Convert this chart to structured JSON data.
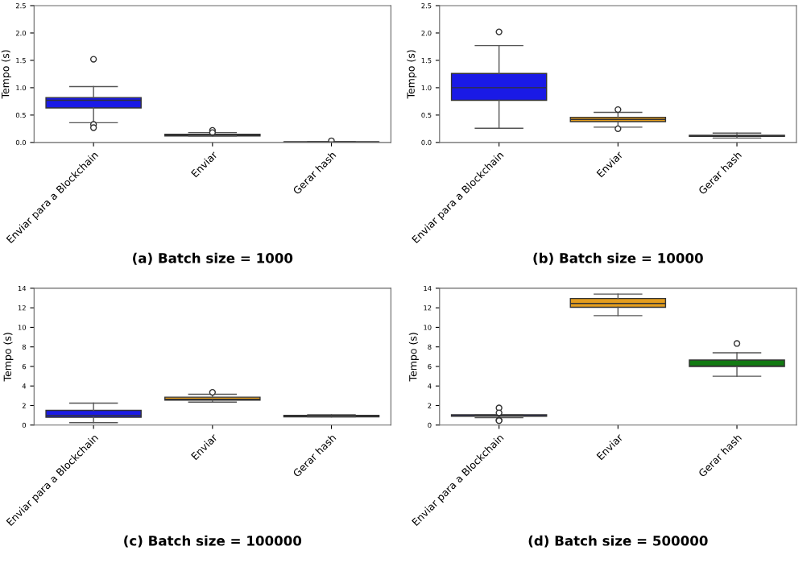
{
  "chart_data": [
    {
      "type": "box",
      "title": "(a) Batch size = 1000",
      "ylabel": "Tempo (s)",
      "categories": [
        "Enviar para a Blockchain",
        "Enviar",
        "Gerar hash"
      ],
      "colors": [
        "#1a1ae6",
        "#e39d1e",
        "#127a12"
      ],
      "boxes": [
        {
          "low": 0.36,
          "q1": 0.63,
          "median": 0.77,
          "q3": 0.82,
          "high": 1.02,
          "outliers": [
            1.52,
            0.33,
            0.27
          ]
        },
        {
          "low": 0.12,
          "q1": 0.12,
          "median": 0.14,
          "q3": 0.15,
          "high": 0.18,
          "outliers": [
            0.22,
            0.18
          ]
        },
        {
          "low": 0.0,
          "q1": 0.005,
          "median": 0.01,
          "q3": 0.01,
          "high": 0.015,
          "outliers": [
            0.03
          ]
        }
      ],
      "ylim": [
        0,
        2.5
      ],
      "yticks": [
        {
          "value": 0,
          "label": "0.0"
        },
        {
          "value": 0.5,
          "label": "0.5"
        },
        {
          "value": 1,
          "label": "1.0"
        },
        {
          "value": 1.5,
          "label": "1.5"
        },
        {
          "value": 2,
          "label": "2.0"
        },
        {
          "value": 2.5,
          "label": "2.5"
        }
      ]
    },
    {
      "type": "box",
      "title": "(b) Batch size = 10000",
      "ylabel": "Tempo (s)",
      "categories": [
        "Enviar para a Blockchain",
        "Enviar",
        "Gerar hash"
      ],
      "colors": [
        "#1a1ae6",
        "#e39d1e",
        "#127a12"
      ],
      "boxes": [
        {
          "low": 0.26,
          "q1": 0.77,
          "median": 1.0,
          "q3": 1.26,
          "high": 1.77,
          "outliers": [
            2.02
          ]
        },
        {
          "low": 0.28,
          "q1": 0.38,
          "median": 0.42,
          "q3": 0.46,
          "high": 0.55,
          "outliers": [
            0.6,
            0.25
          ]
        },
        {
          "low": 0.08,
          "q1": 0.11,
          "median": 0.12,
          "q3": 0.13,
          "high": 0.17
        }
      ],
      "ylim": [
        0,
        2.5
      ],
      "yticks": [
        {
          "value": 0,
          "label": "0.0"
        },
        {
          "value": 0.5,
          "label": "0.5"
        },
        {
          "value": 1,
          "label": "1.0"
        },
        {
          "value": 1.5,
          "label": "1.5"
        },
        {
          "value": 2,
          "label": "2.0"
        },
        {
          "value": 2.5,
          "label": "2.5"
        }
      ]
    },
    {
      "type": "box",
      "title": "(c) Batch size = 100000",
      "ylabel": "Tempo (s)",
      "categories": [
        "Enviar para a Blockchain",
        "Enviar",
        "Gerar hash"
      ],
      "colors": [
        "#1a1ae6",
        "#e39d1e",
        "#127a12"
      ],
      "boxes": [
        {
          "low": 0.25,
          "q1": 0.8,
          "median": 1.0,
          "q3": 1.5,
          "high": 2.25
        },
        {
          "low": 2.35,
          "q1": 2.55,
          "median": 2.65,
          "q3": 2.85,
          "high": 3.15,
          "outliers": [
            3.35
          ]
        },
        {
          "low": 0.85,
          "q1": 0.85,
          "median": 0.95,
          "q3": 1.0,
          "high": 1.05
        }
      ],
      "ylim": [
        0,
        14
      ],
      "yticks": [
        0,
        2,
        4,
        6,
        8,
        10,
        12,
        14
      ]
    },
    {
      "type": "box",
      "title": "(d) Batch size = 500000",
      "ylabel": "Tempo (s)",
      "categories": [
        "Enviar para a Blockchain",
        "Enviar",
        "Gerar hash"
      ],
      "colors": [
        "#1a1ae6",
        "#e39d1e",
        "#127a12"
      ],
      "boxes": [
        {
          "low": 0.75,
          "q1": 0.9,
          "median": 0.95,
          "q3": 1.05,
          "high": 1.05,
          "outliers": [
            1.75,
            1.25,
            0.5,
            0.45
          ]
        },
        {
          "low": 11.2,
          "q1": 12.05,
          "median": 12.45,
          "q3": 12.95,
          "high": 13.4
        },
        {
          "low": 5.0,
          "q1": 6.0,
          "median": 6.05,
          "q3": 6.65,
          "high": 7.4,
          "outliers": [
            8.35
          ]
        }
      ],
      "ylim": [
        0,
        14
      ],
      "yticks": [
        0,
        2,
        4,
        6,
        8,
        10,
        12,
        14
      ]
    }
  ]
}
